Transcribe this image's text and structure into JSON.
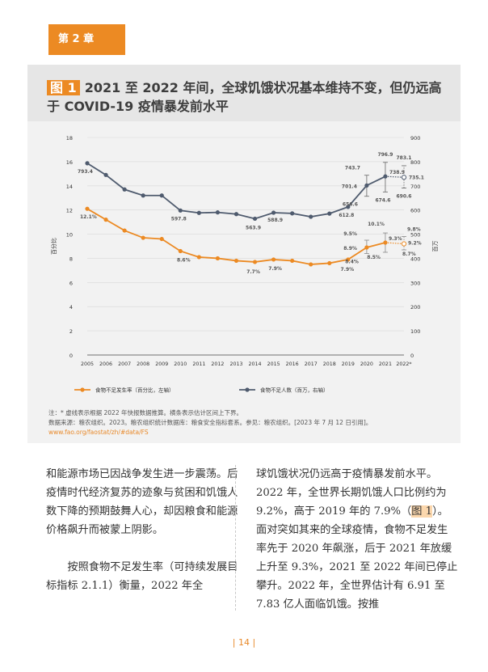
{
  "chapter": {
    "label": "第 2 章"
  },
  "figure": {
    "badge": "图 1",
    "title_line1": "2021 至 2022 年间，全球饥饿状况基本维持不变，但仍远高",
    "title_line2": "于 COVID-19 疫情暴发前水平"
  },
  "chart_data": {
    "type": "line",
    "categories": [
      "2005",
      "2006",
      "2007",
      "2008",
      "2009",
      "2010",
      "2011",
      "2012",
      "2013",
      "2014",
      "2015",
      "2016",
      "2017",
      "2018",
      "2019",
      "2020",
      "2021",
      "2022*"
    ],
    "series": [
      {
        "name": "食物不足发生率（百分比，左轴）",
        "axis": "left",
        "color": "#ec8a23",
        "values": [
          12.1,
          11.2,
          10.3,
          9.7,
          9.6,
          8.6,
          8.1,
          8.0,
          7.8,
          7.7,
          7.9,
          7.8,
          7.5,
          7.6,
          7.9,
          8.9,
          9.3,
          9.2
        ],
        "range_2020": [
          8.4,
          9.5
        ],
        "range_2021": [
          8.5,
          10.1
        ],
        "range_2022": [
          8.7,
          9.8
        ]
      },
      {
        "name": "食物不足人数（百万，右轴）",
        "axis": "right",
        "color": "#4f5b6e",
        "values": [
          793.4,
          745,
          685,
          660,
          660,
          597.8,
          588,
          590,
          583,
          563.9,
          588.9,
          586,
          572,
          585,
          612.8,
          701.4,
          738.9,
          735.1
        ],
        "range_2020": [
          656.6,
          743.7
        ],
        "range_2021": [
          674.6,
          796.9
        ],
        "range_2022": [
          690.6,
          783.1
        ]
      }
    ],
    "orange_labels": [
      {
        "text": "12.1%",
        "year_index": 0
      },
      {
        "text": "8.6%",
        "year_index": 5
      },
      {
        "text": "7.7%",
        "year_index": 9
      },
      {
        "text": "7.9%",
        "year_index": 10
      },
      {
        "text": "7.9%",
        "year_index": 14
      },
      {
        "text": "8.9%",
        "year_index": 15
      },
      {
        "text": "9.5%",
        "year_index": 15
      },
      {
        "text": "8.4%",
        "year_index": 15
      },
      {
        "text": "10.1%",
        "year_index": 16
      },
      {
        "text": "9.3%",
        "year_index": 16
      },
      {
        "text": "8.5%",
        "year_index": 16
      },
      {
        "text": "9.8%",
        "year_index": 17
      },
      {
        "text": "9.2%",
        "year_index": 17
      },
      {
        "text": "8.7%",
        "year_index": 17
      }
    ],
    "gray_labels": [
      {
        "text": "793.4",
        "year_index": 0
      },
      {
        "text": "597.8",
        "year_index": 5
      },
      {
        "text": "563.9",
        "year_index": 9
      },
      {
        "text": "588.9",
        "year_index": 10
      },
      {
        "text": "612.8",
        "year_index": 14
      },
      {
        "text": "701.4",
        "year_index": 15
      },
      {
        "text": "743.7",
        "year_index": 15
      },
      {
        "text": "656.6",
        "year_index": 15
      },
      {
        "text": "796.9",
        "year_index": 16
      },
      {
        "text": "738.9",
        "year_index": 16
      },
      {
        "text": "674.6",
        "year_index": 16
      },
      {
        "text": "783.1",
        "year_index": 17
      },
      {
        "text": "735.1",
        "year_index": 17
      },
      {
        "text": "690.6",
        "year_index": 17
      }
    ],
    "left_ticks": [
      "0",
      "2",
      "4",
      "6",
      "8",
      "10",
      "12",
      "14",
      "16",
      "18"
    ],
    "right_ticks": [
      "0",
      "100",
      "200",
      "300",
      "400",
      "500",
      "600",
      "700",
      "800",
      "900"
    ],
    "ylim_left": [
      0,
      18
    ],
    "ylim_right": [
      0,
      900
    ],
    "ylabel_left": "百分比",
    "ylabel_right": "百万",
    "legend": [
      "食物不足发生率（百分比，左轴）",
      "食物不足人数（百万，右轴）"
    ]
  },
  "notes": {
    "line1": "注：* 虚线表示根据 2022 年快报数据推算。横条表示估计区间上下界。",
    "line2": "数据来源：粮农组织。2023。粮农组织统计数据库：粮食安全指标套系。参见：粮农组织。[2023 年 7 月 12 日引用]。",
    "url": "www.fao.org/faostat/zh/#data/FS"
  },
  "body": {
    "left_p1": "和能源市场已因战争发生进一步震荡。后疫情时代经济复苏的迹象与贫困和饥饿人数下降的预期鼓舞人心，却因粮食和能源价格飙升而被蒙上阴影。",
    "left_p2": "按照食物不足发生率（可持续发展目标指标 2.1.1）衡量，2022 年全",
    "right_p1_a": "球饥饿状况仍远高于疫情暴发前水平。2022 年，全世界长期饥饿人口比例约为 9.2%，高于 2019 年的 7.9%（",
    "right_ref": "图 1",
    "right_p1_b": "）。面对突如其来的全球疫情，食物不足发生率先于 2020 年飙涨，后于 2021 年放缓上升至 9.3%，2021 至 2022 年间已停止攀升。2022 年，全世界估计有 6.91 至 7.83 亿人面临饥饿。按推"
  },
  "page_number": "| 14 |"
}
